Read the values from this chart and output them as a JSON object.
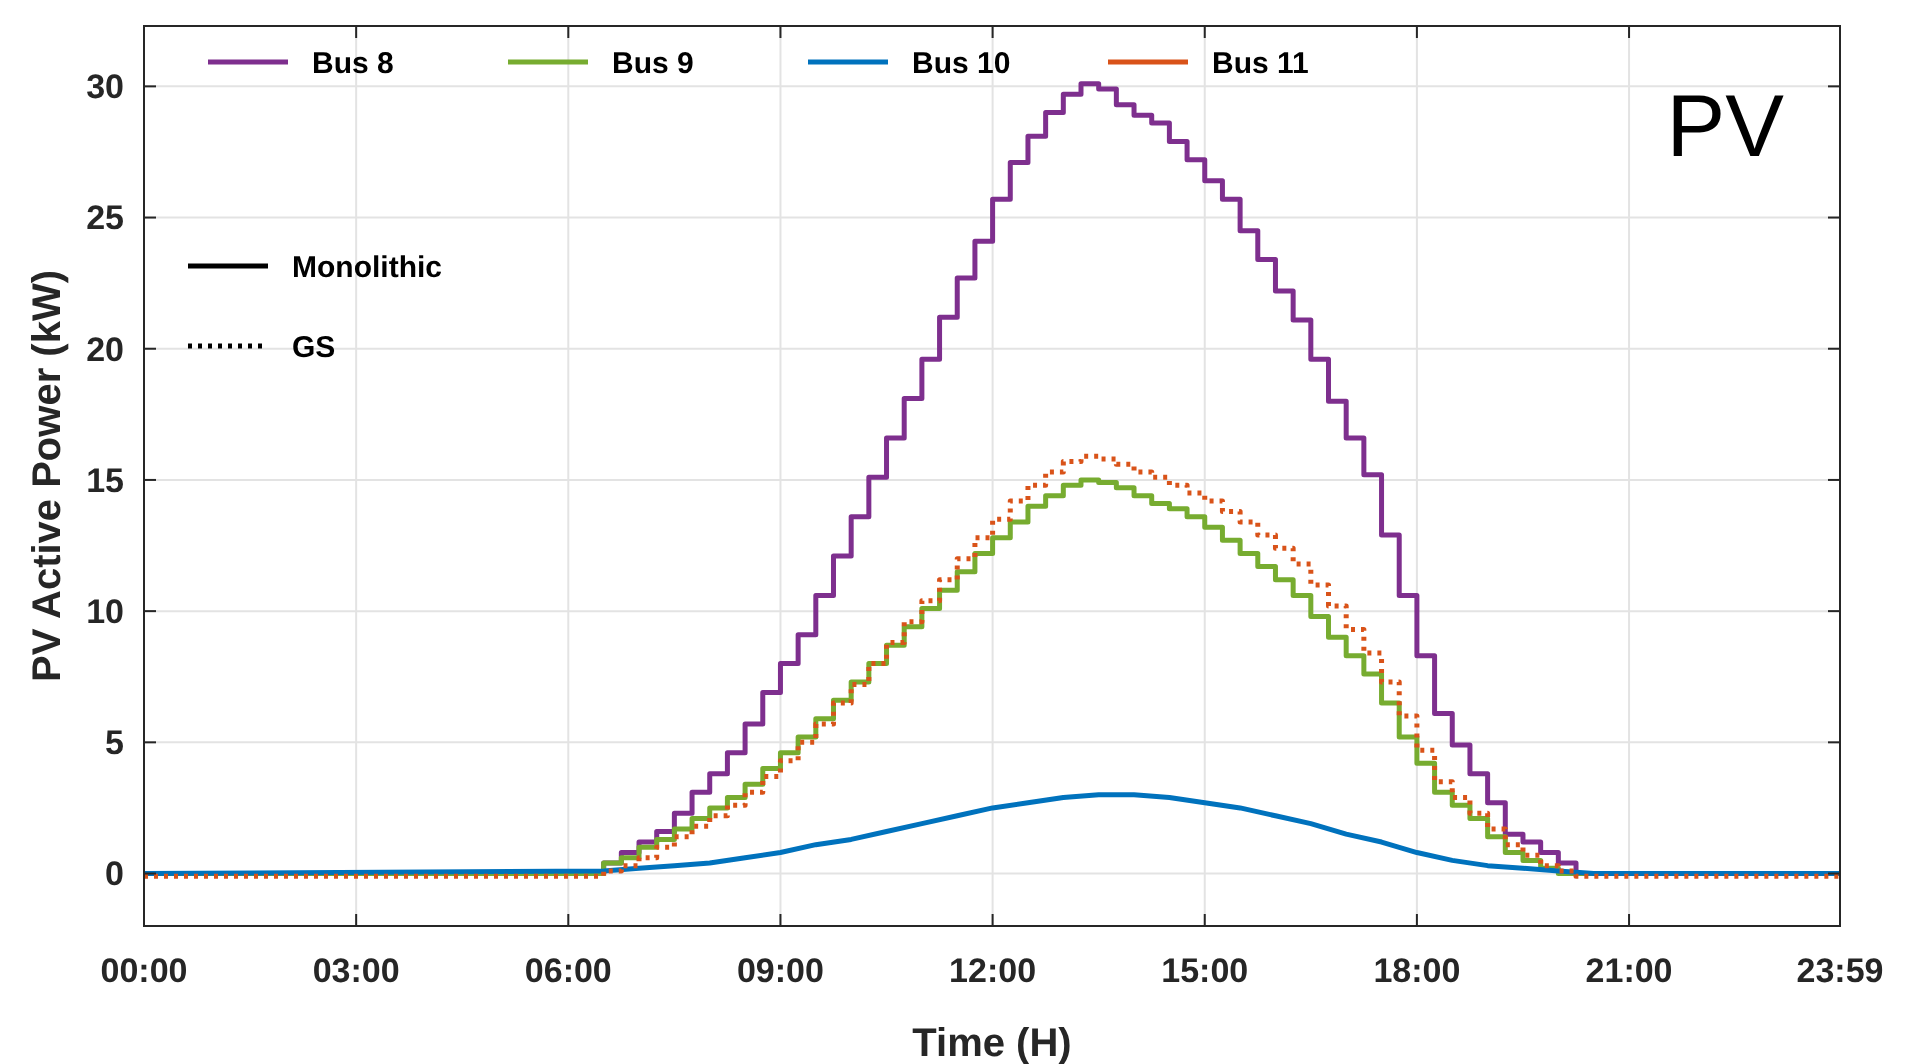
{
  "chart_data": {
    "type": "step",
    "xlabel": "Time (H)",
    "ylabel": "PV Active Power (kW)",
    "annotations": [
      "PV",
      "Monolithic",
      "GS"
    ],
    "x": [
      0,
      6.5,
      6.75,
      7.0,
      7.25,
      7.5,
      7.75,
      8.0,
      8.25,
      8.5,
      8.75,
      9.0,
      9.25,
      9.5,
      9.75,
      10.0,
      10.25,
      10.5,
      10.75,
      11.0,
      11.25,
      11.5,
      11.75,
      12.0,
      12.25,
      12.5,
      12.75,
      13.0,
      13.25,
      13.5,
      13.75,
      14.0,
      14.25,
      14.5,
      14.75,
      15.0,
      15.25,
      15.5,
      15.75,
      16.0,
      16.25,
      16.5,
      16.75,
      17.0,
      17.25,
      17.5,
      17.75,
      18.0,
      18.25,
      18.5,
      18.75,
      19.0,
      19.25,
      19.5,
      19.75,
      20.0,
      20.25,
      23.983
    ],
    "series": [
      {
        "name": "Bus 8",
        "color": "#7e2f8e",
        "values": [
          0,
          0.4,
          0.8,
          1.2,
          1.6,
          2.3,
          3.1,
          3.8,
          4.6,
          5.7,
          6.9,
          8.0,
          9.1,
          10.6,
          12.1,
          13.6,
          15.1,
          16.6,
          18.1,
          19.6,
          21.2,
          22.7,
          24.1,
          25.7,
          27.1,
          28.1,
          29.0,
          29.7,
          30.1,
          29.9,
          29.3,
          28.9,
          28.6,
          27.9,
          27.2,
          26.4,
          25.7,
          24.5,
          23.4,
          22.2,
          21.1,
          19.6,
          18.0,
          16.6,
          15.2,
          12.9,
          10.6,
          8.3,
          6.1,
          4.9,
          3.8,
          2.7,
          1.5,
          1.2,
          0.8,
          0.4,
          0,
          0
        ]
      },
      {
        "name": "Bus 9",
        "color": "#77ac30",
        "values": [
          0,
          0.4,
          0.6,
          1.0,
          1.3,
          1.7,
          2.1,
          2.5,
          2.9,
          3.4,
          4.0,
          4.6,
          5.2,
          5.9,
          6.6,
          7.3,
          8.0,
          8.7,
          9.4,
          10.1,
          10.8,
          11.5,
          12.2,
          12.8,
          13.4,
          14.0,
          14.4,
          14.8,
          15.0,
          14.9,
          14.7,
          14.4,
          14.1,
          13.9,
          13.6,
          13.2,
          12.7,
          12.2,
          11.7,
          11.2,
          10.6,
          9.8,
          9.0,
          8.3,
          7.6,
          6.5,
          5.2,
          4.2,
          3.1,
          2.6,
          2.1,
          1.4,
          0.8,
          0.5,
          0.2,
          0,
          0,
          0
        ]
      },
      {
        "name": "Bus 10",
        "color": "#0072bd",
        "type": "line",
        "x": [
          0,
          6.5,
          7,
          7.5,
          8,
          8.5,
          9,
          9.5,
          10,
          10.5,
          11,
          11.5,
          12,
          12.5,
          13,
          13.5,
          14,
          14.5,
          15,
          15.5,
          16,
          16.5,
          17,
          17.5,
          18,
          18.5,
          19,
          19.5,
          20,
          20.5,
          23.983
        ],
        "values": [
          0,
          0.1,
          0.2,
          0.3,
          0.4,
          0.6,
          0.8,
          1.1,
          1.3,
          1.6,
          1.9,
          2.2,
          2.5,
          2.7,
          2.9,
          3.0,
          3.0,
          2.9,
          2.7,
          2.5,
          2.2,
          1.9,
          1.5,
          1.2,
          0.8,
          0.5,
          0.3,
          0.2,
          0.1,
          0,
          0
        ]
      },
      {
        "name": "Bus 11",
        "color": "#d95319",
        "line_style": "dotted",
        "values": [
          -0.1,
          0.1,
          0.3,
          0.6,
          1.0,
          1.4,
          1.8,
          2.2,
          2.6,
          3.1,
          3.7,
          4.3,
          5.0,
          5.7,
          6.5,
          7.2,
          8.0,
          8.8,
          9.6,
          10.4,
          11.2,
          12.0,
          12.8,
          13.5,
          14.2,
          14.8,
          15.3,
          15.7,
          15.9,
          15.8,
          15.6,
          15.3,
          15.1,
          14.8,
          14.5,
          14.2,
          13.8,
          13.4,
          12.9,
          12.4,
          11.8,
          11.0,
          10.2,
          9.3,
          8.4,
          7.3,
          6.0,
          4.7,
          3.5,
          2.9,
          2.3,
          1.7,
          1.1,
          0.7,
          0.3,
          0.1,
          -0.1,
          -0.1
        ]
      }
    ],
    "xlim": [
      0,
      23.983
    ],
    "xticks": [
      {
        "value": 0,
        "label": "00:00"
      },
      {
        "value": 3,
        "label": "03:00"
      },
      {
        "value": 6,
        "label": "06:00"
      },
      {
        "value": 9,
        "label": "09:00"
      },
      {
        "value": 12,
        "label": "12:00"
      },
      {
        "value": 15,
        "label": "15:00"
      },
      {
        "value": 18,
        "label": "18:00"
      },
      {
        "value": 21,
        "label": "21:00"
      },
      {
        "value": 23.983,
        "label": "23:59"
      }
    ],
    "ylim": [
      -2,
      32.3
    ],
    "yticks": [
      0,
      5,
      10,
      15,
      20,
      25,
      30
    ],
    "grid": true,
    "legend": "top left",
    "line_style": "solid"
  }
}
